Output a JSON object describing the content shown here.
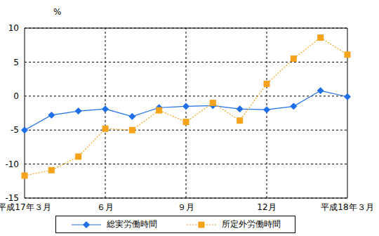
{
  "chart_data": {
    "type": "line",
    "y_label": "%",
    "categories": [
      "平成17年３月",
      null,
      null,
      "６月",
      null,
      null,
      "９月",
      null,
      null,
      "12月",
      null,
      null,
      "平成18年３月"
    ],
    "series": [
      {
        "name": "総実労働時間",
        "color": "#1e6fe8",
        "marker": "diamond",
        "line_style": "solid",
        "values": [
          -5.0,
          -2.8,
          -2.2,
          -1.9,
          -3.0,
          -1.7,
          -1.5,
          -1.4,
          -1.9,
          -2.0,
          -1.5,
          0.8,
          -0.1
        ]
      },
      {
        "name": "所定外労働時間",
        "color": "#f5a31a",
        "marker": "square",
        "line_style": "dotted",
        "values": [
          -11.7,
          -10.9,
          -8.9,
          -4.8,
          -5.0,
          -2.1,
          -3.8,
          -1.0,
          -3.6,
          1.8,
          5.5,
          8.6,
          6.1
        ]
      }
    ],
    "ylim": [
      -15,
      10
    ],
    "yticks": [
      -15,
      -10,
      -5,
      0,
      5,
      10
    ],
    "grid": true,
    "legend": "bottom"
  }
}
